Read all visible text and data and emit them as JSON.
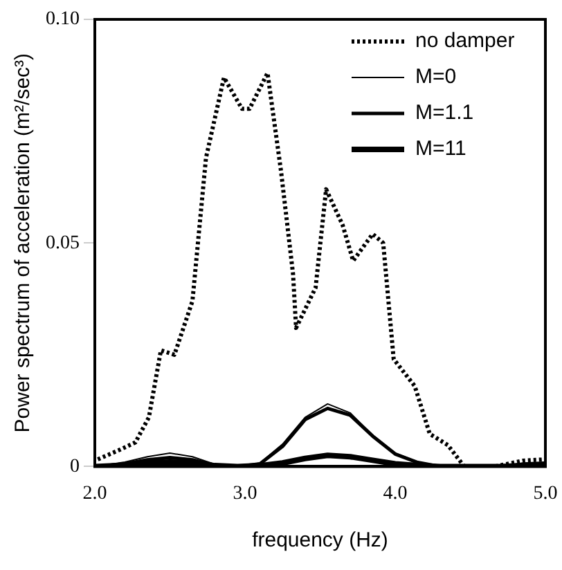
{
  "chart_data": {
    "type": "line",
    "xlabel": "frequency (Hz)",
    "ylabel": "Power spectrum of acceleration (m²/sec³)",
    "xlim": [
      2.0,
      5.0
    ],
    "xticks": [
      {
        "value": 2,
        "label": "2.0"
      },
      {
        "value": 3,
        "label": "3.0"
      },
      {
        "value": 4,
        "label": "4.0"
      },
      {
        "value": 5,
        "label": "5.0"
      }
    ],
    "ylim": [
      0,
      0.1
    ],
    "yticks": [
      0,
      0.05,
      {
        "value": 0.1,
        "label": "0.10"
      }
    ],
    "grid": false,
    "legend": "top right",
    "marker": "none",
    "series": [
      {
        "name": "no damper",
        "color": "#000000",
        "line_style": "dotted",
        "x": [
          2.02,
          2.17,
          2.27,
          2.36,
          2.44,
          2.53,
          2.65,
          2.74,
          2.86,
          2.98,
          3.03,
          3.15,
          3.24,
          3.32,
          3.34,
          3.47,
          3.54,
          3.65,
          3.72,
          3.85,
          3.92,
          3.99,
          4.13,
          4.23,
          4.35,
          4.46,
          4.66,
          4.85,
          5.0
        ],
        "values": [
          0.0016,
          0.0038,
          0.0054,
          0.011,
          0.026,
          0.025,
          0.037,
          0.069,
          0.087,
          0.08,
          0.08,
          0.088,
          0.066,
          0.043,
          0.031,
          0.04,
          0.062,
          0.054,
          0.046,
          0.052,
          0.05,
          0.024,
          0.018,
          0.0073,
          0.0048,
          0,
          0,
          0.0013,
          0.0016
        ]
      },
      {
        "name": "M=0",
        "color": "#000000",
        "line_style": "solid",
        "x": [
          2.0,
          2.2,
          2.35,
          2.5,
          2.65,
          2.8,
          2.95,
          3.1,
          3.25,
          3.4,
          3.55,
          3.7,
          3.85,
          4.0,
          4.15,
          4.3,
          4.5,
          4.7,
          4.85,
          5.0
        ],
        "values": [
          0,
          0.001,
          0.0022,
          0.003,
          0.0022,
          0.0005,
          0,
          0.0008,
          0.005,
          0.011,
          0.014,
          0.012,
          0.007,
          0.003,
          0.001,
          0,
          0,
          0,
          0.0008,
          0.001
        ]
      },
      {
        "name": "M=1.1",
        "color": "#000000",
        "line_style": "solid",
        "x": [
          2.0,
          2.2,
          2.35,
          2.5,
          2.65,
          2.8,
          2.95,
          3.1,
          3.25,
          3.4,
          3.55,
          3.7,
          3.85,
          4.0,
          4.15,
          4.3,
          4.5,
          4.7,
          4.85,
          5.0
        ],
        "values": [
          0,
          0.0006,
          0.0015,
          0.002,
          0.0015,
          0.0003,
          0,
          0.0006,
          0.0045,
          0.0105,
          0.013,
          0.0115,
          0.0068,
          0.0028,
          0.0009,
          0,
          0,
          0,
          0.0005,
          0.0007
        ]
      },
      {
        "name": "M=11",
        "color": "#000000",
        "line_style": "solid",
        "x": [
          2.0,
          2.2,
          2.35,
          2.5,
          2.65,
          2.8,
          2.95,
          3.1,
          3.25,
          3.4,
          3.55,
          3.7,
          3.85,
          4.0,
          4.15,
          4.3,
          4.5,
          4.7,
          4.85,
          5.0
        ],
        "values": [
          0,
          0.0003,
          0.0008,
          0.001,
          0.0008,
          0.0002,
          0,
          0.0002,
          0.0008,
          0.0018,
          0.0025,
          0.0022,
          0.0014,
          0.0006,
          0.0002,
          0,
          0,
          0,
          0.0002,
          0.0003
        ]
      }
    ]
  }
}
